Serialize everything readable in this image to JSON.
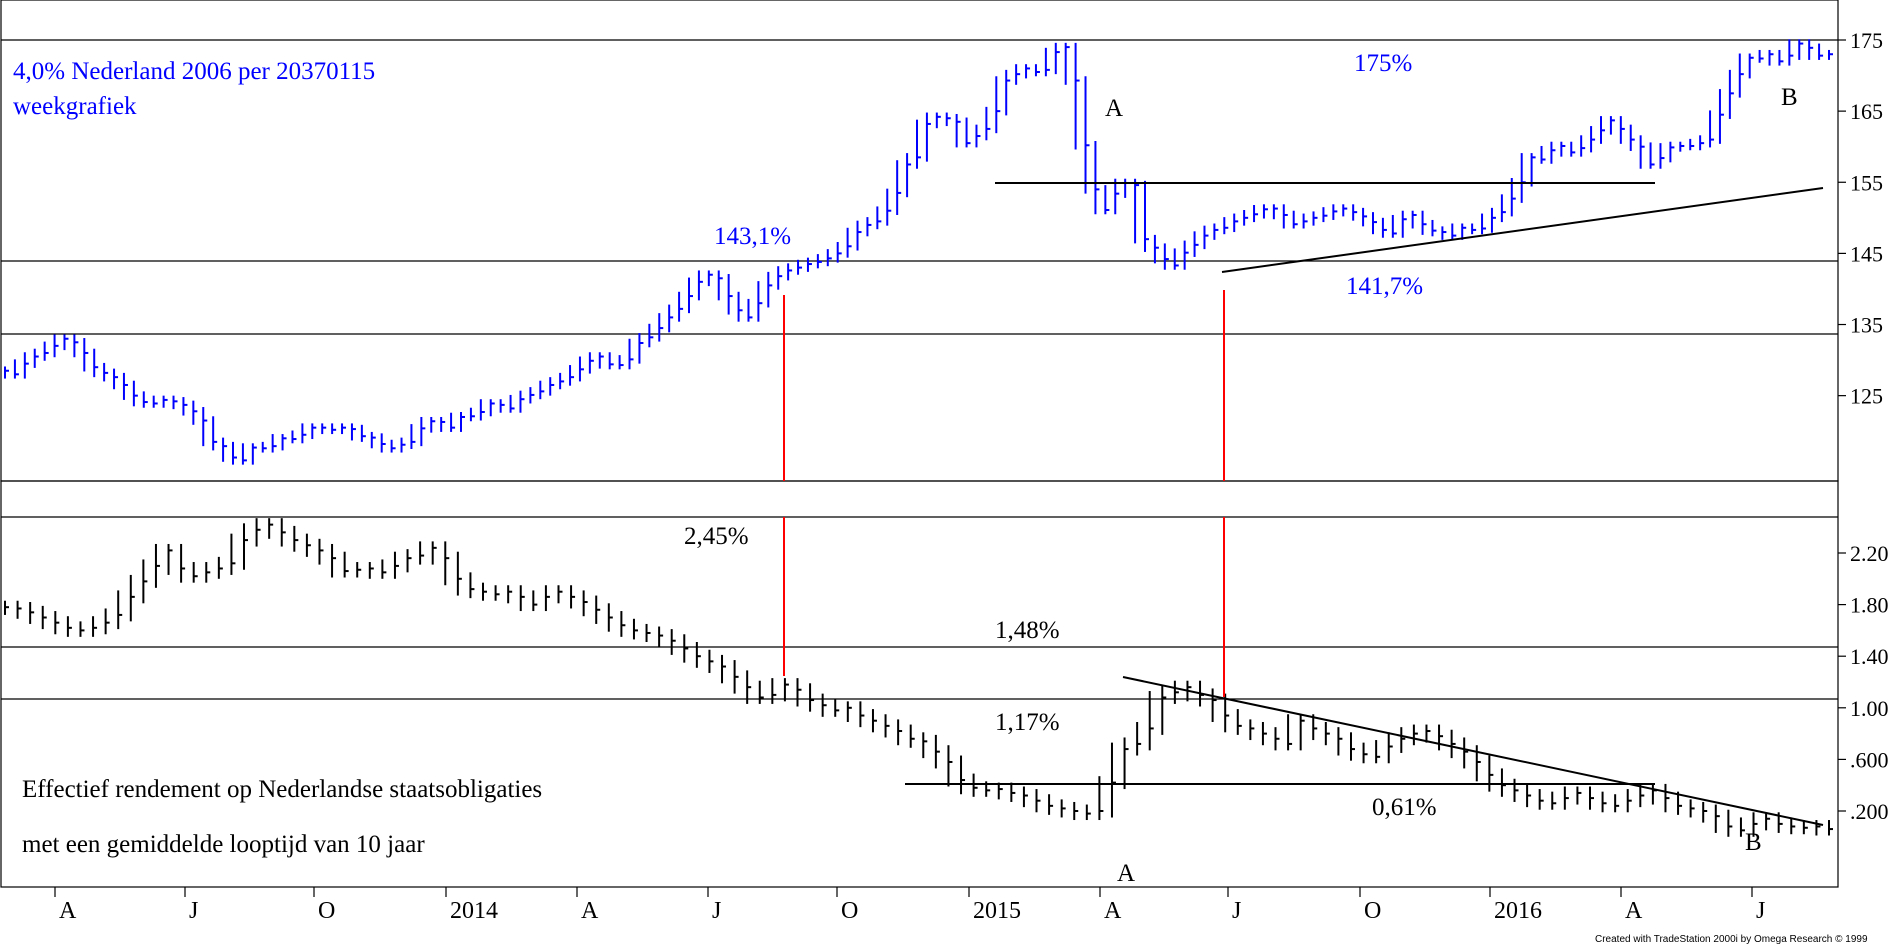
{
  "chart_data": [
    {
      "type": "bar",
      "subtype": "ohlc-weekly",
      "title": "4,0% Nederland 2006 per 20370115",
      "subtitle": "weekgrafiek",
      "color": "#0000ff",
      "y_ticks": [
        "175",
        "165",
        "155",
        "145",
        "135",
        "125"
      ],
      "ylim": [
        113,
        180
      ],
      "x_ticks": [
        "A",
        "J",
        "O",
        "2014",
        "A",
        "J",
        "O",
        "2015",
        "A",
        "J",
        "O",
        "2016",
        "A",
        "J"
      ],
      "series": [
        {
          "values": [
            128.5,
            128,
            129.5,
            130.5,
            131,
            132,
            133,
            132.5,
            131,
            129,
            128.2,
            127.6,
            126.5,
            125,
            124.1,
            123.9,
            124.4,
            124.2,
            123.7,
            122.8,
            121.5,
            118.5,
            117.9,
            116.3,
            115.9,
            117.7,
            117.6,
            117.9,
            119,
            118.9,
            119.5,
            120.5,
            120.5,
            120.2,
            120.5,
            120.3,
            119.3,
            119.1,
            118.2,
            117.6,
            118.1,
            118.5,
            120.4,
            121.4,
            121.3,
            120.5,
            122,
            122.1,
            122.7,
            123.9,
            123.7,
            123.2,
            124.5,
            125.1,
            125.6,
            126.5,
            127,
            127.6,
            128.7,
            129.9,
            130.5,
            129.4,
            129.3,
            130.1,
            132.4,
            133.2,
            134.5,
            136,
            137.2,
            139,
            141,
            142,
            141.5,
            139,
            137,
            136,
            138,
            140.5,
            141.8,
            142.6,
            143,
            143.5,
            143.8,
            144.3,
            145,
            146,
            148,
            149,
            149.5,
            151,
            153.5,
            157.5,
            158.5,
            163.2,
            164.2,
            164,
            163.5,
            160.5,
            161.5,
            162.5,
            165,
            169.3,
            170.2,
            171,
            170.5,
            170.8,
            173.3,
            174,
            169.3,
            160.2,
            154,
            151.1,
            153.4,
            154.9,
            154.6,
            147,
            145.8,
            144.2,
            143.3,
            145.1,
            146.2,
            147.5,
            148.3,
            148.6,
            149.5,
            150,
            150.5,
            151.2,
            151.3,
            150.4,
            149.1,
            149.5,
            150,
            150.3,
            150.9,
            151.3,
            150.8,
            150.2,
            149.4,
            148.3,
            147.8,
            149.8,
            150.4,
            149.1,
            148.2,
            148,
            147.5,
            148.6,
            148.3,
            148.5,
            150,
            150.8,
            152.7,
            155,
            158.5,
            158.2,
            159.5,
            160.1,
            159.2,
            159.8,
            161,
            162.3,
            163.7,
            162.5,
            161,
            160,
            157.5,
            158.4,
            159.9,
            160.1,
            160.1,
            160.5,
            161,
            164.5,
            167.5,
            170.2,
            172.5,
            172.4,
            173,
            172,
            172.8,
            174.5,
            173.9,
            172.8,
            173
          ]
        }
      ],
      "annotations": [
        "143,1%",
        "141,7%",
        "175%",
        "A",
        "B"
      ]
    },
    {
      "type": "bar",
      "subtype": "ohlc-weekly",
      "title": "Effectief rendement op Nederlandse staatsobligaties",
      "subtitle": "met een gemiddelde looptijd van 10 jaar",
      "color": "#000000",
      "y_ticks": [
        "2.20",
        "1.80",
        "1.40",
        "1.00",
        ".600",
        ".200"
      ],
      "ylim": [
        -0.05,
        2.62
      ],
      "x_ticks": [
        "A",
        "J",
        "O",
        "2014",
        "A",
        "J",
        "O",
        "2015",
        "A",
        "J",
        "O",
        "2016",
        "A",
        "J"
      ],
      "series": [
        {
          "values": [
            1.78,
            1.77,
            1.74,
            1.7,
            1.66,
            1.62,
            1.6,
            1.62,
            1.66,
            1.72,
            1.86,
            1.98,
            2.1,
            2.22,
            2.08,
            2.02,
            2.05,
            2.08,
            2.12,
            2.3,
            2.38,
            2.42,
            2.36,
            2.3,
            2.26,
            2.22,
            2.16,
            2.06,
            2.07,
            2.08,
            2.05,
            2.1,
            2.16,
            2.18,
            2.24,
            2.16,
            2.0,
            1.92,
            1.9,
            1.88,
            1.9,
            1.86,
            1.8,
            1.86,
            1.9,
            1.86,
            1.82,
            1.76,
            1.7,
            1.64,
            1.6,
            1.58,
            1.56,
            1.52,
            1.46,
            1.4,
            1.36,
            1.32,
            1.24,
            1.16,
            1.08,
            1.1,
            1.18,
            1.14,
            1.06,
            1.02,
            0.98,
            1.0,
            0.94,
            0.9,
            0.86,
            0.82,
            0.76,
            0.74,
            0.66,
            0.58,
            0.44,
            0.38,
            0.36,
            0.37,
            0.34,
            0.32,
            0.28,
            0.24,
            0.22,
            0.2,
            0.18,
            0.2,
            0.42,
            0.68,
            0.72,
            0.84,
            1.08,
            1.12,
            1.16,
            1.1,
            1.06,
            0.94,
            0.86,
            0.84,
            0.8,
            0.76,
            0.72,
            0.9,
            0.84,
            0.8,
            0.76,
            0.68,
            0.64,
            0.62,
            0.7,
            0.76,
            0.8,
            0.82,
            0.78,
            0.72,
            0.66,
            0.58,
            0.48,
            0.4,
            0.36,
            0.32,
            0.28,
            0.26,
            0.3,
            0.34,
            0.3,
            0.26,
            0.24,
            0.28,
            0.32,
            0.36,
            0.3,
            0.24,
            0.22,
            0.2,
            0.16,
            0.08,
            0.05,
            0.1,
            0.14,
            0.1,
            0.08,
            0.07,
            0.08,
            0.06
          ]
        }
      ],
      "annotations": [
        "2,45%",
        "1,48%",
        "1,17%",
        "0,61%",
        "A",
        "B"
      ]
    }
  ],
  "credit": "Created with TradeStation 2000i by Omega Research © 1999"
}
